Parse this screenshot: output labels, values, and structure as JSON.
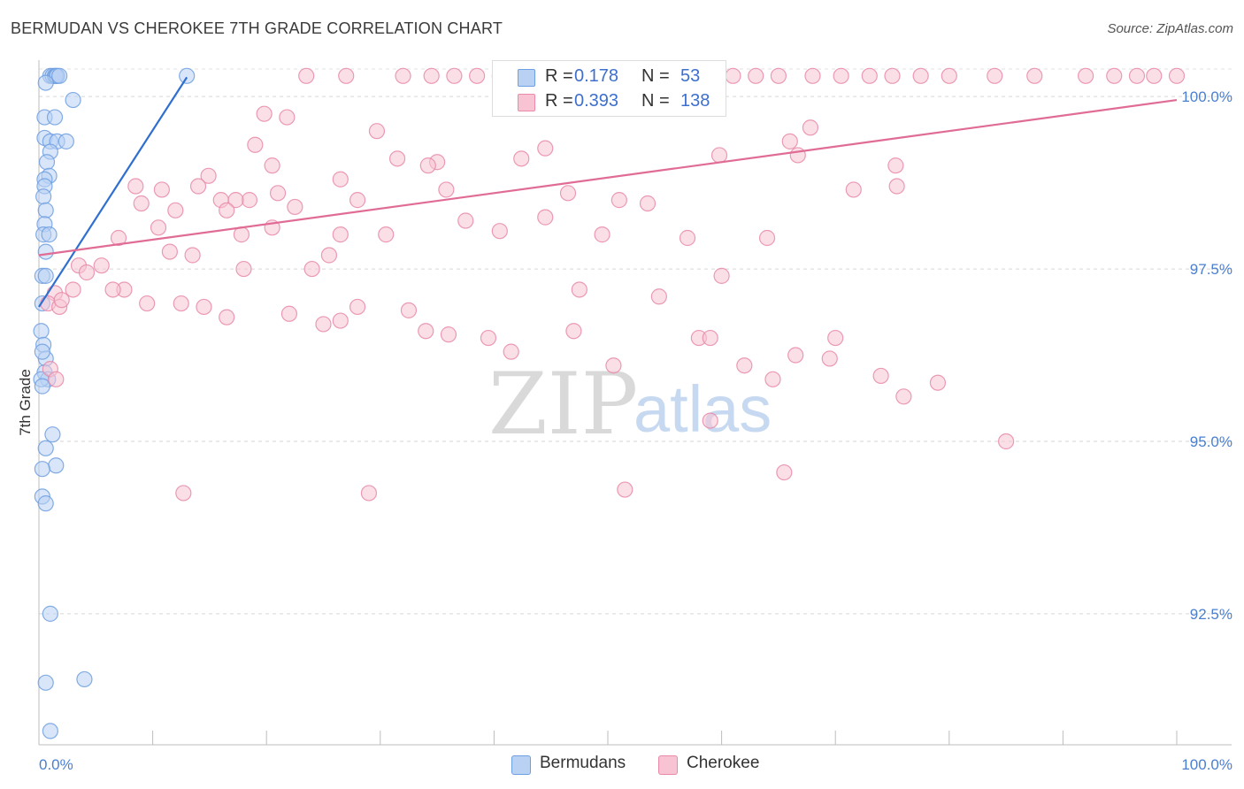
{
  "header": {
    "title": "BERMUDAN VS CHEROKEE 7TH GRADE CORRELATION CHART",
    "source": "Source: ZipAtlas.com"
  },
  "legend": {
    "r_label": "R =",
    "n_label": "N =",
    "rows": [
      {
        "name": "Bermudans",
        "r": "0.178",
        "n": "53",
        "fill": "#b9d2f4",
        "stroke": "#6e9fe0"
      },
      {
        "name": "Cherokee",
        "r": "0.393",
        "n": "138",
        "fill": "#f8c4d4",
        "stroke": "#e88aa8"
      }
    ]
  },
  "watermark": {
    "zip": "ZIP",
    "atlas": "atlas"
  },
  "chart_data": {
    "type": "scatter",
    "title": "BERMUDAN VS CHEROKEE 7TH GRADE CORRELATION CHART",
    "xlabel": "",
    "ylabel": "7th Grade",
    "xlim": [
      0,
      100
    ],
    "ylim": [
      90.6,
      100.4
    ],
    "x_tick_labels": [
      "0.0%",
      "100.0%"
    ],
    "y_ticks": [
      100.0,
      97.5,
      95.0,
      92.5
    ],
    "y_tick_labels": [
      "100.0%",
      "97.5%",
      "95.0%",
      "92.5%"
    ],
    "grid": true,
    "series": [
      {
        "name": "Bermudans",
        "color": "#6e9fe0",
        "fill": "#b9d2f4",
        "trend_color": "#2f6fd0",
        "trend": {
          "x0": 0.0,
          "y0": 96.95,
          "x1": 13.0,
          "y1": 100.28
        },
        "points": [
          [
            1.0,
            100.3
          ],
          [
            1.2,
            100.3
          ],
          [
            1.4,
            100.3
          ],
          [
            1.5,
            100.3
          ],
          [
            1.6,
            100.3
          ],
          [
            1.8,
            100.3
          ],
          [
            13.0,
            100.3
          ],
          [
            0.6,
            100.2
          ],
          [
            3.0,
            99.95
          ],
          [
            0.5,
            99.7
          ],
          [
            1.4,
            99.7
          ],
          [
            0.5,
            99.4
          ],
          [
            1.0,
            99.35
          ],
          [
            1.6,
            99.35
          ],
          [
            2.4,
            99.35
          ],
          [
            1.0,
            99.2
          ],
          [
            0.7,
            99.05
          ],
          [
            0.9,
            98.85
          ],
          [
            0.5,
            98.8
          ],
          [
            0.5,
            98.7
          ],
          [
            0.4,
            98.55
          ],
          [
            0.6,
            98.35
          ],
          [
            0.5,
            98.15
          ],
          [
            0.4,
            98.0
          ],
          [
            0.9,
            98.0
          ],
          [
            0.6,
            97.75
          ],
          [
            0.3,
            97.4
          ],
          [
            0.6,
            97.4
          ],
          [
            0.3,
            97.0
          ],
          [
            0.2,
            96.6
          ],
          [
            0.4,
            96.4
          ],
          [
            0.6,
            96.2
          ],
          [
            0.3,
            96.3
          ],
          [
            0.5,
            96.0
          ],
          [
            0.8,
            95.9
          ],
          [
            0.2,
            95.9
          ],
          [
            0.3,
            95.8
          ],
          [
            1.2,
            95.1
          ],
          [
            0.6,
            94.9
          ],
          [
            1.5,
            94.65
          ],
          [
            0.3,
            94.6
          ],
          [
            0.3,
            94.2
          ],
          [
            0.6,
            94.1
          ],
          [
            1.0,
            92.5
          ],
          [
            0.6,
            91.5
          ],
          [
            4.0,
            91.55
          ],
          [
            1.0,
            90.8
          ]
        ]
      },
      {
        "name": "Cherokee",
        "color": "#e88aa8",
        "fill": "#f8c4d4",
        "trend_color": "#e06c95",
        "trend": {
          "x0": 0.0,
          "y0": 97.7,
          "x1": 100.0,
          "y1": 99.95
        },
        "points": [
          [
            23.5,
            100.3
          ],
          [
            27.0,
            100.3
          ],
          [
            32.0,
            100.3
          ],
          [
            34.5,
            100.3
          ],
          [
            36.5,
            100.3
          ],
          [
            38.5,
            100.3
          ],
          [
            40.5,
            100.3
          ],
          [
            41.5,
            100.3
          ],
          [
            43.5,
            100.3
          ],
          [
            45.5,
            100.3
          ],
          [
            47.0,
            100.3
          ],
          [
            48.5,
            100.3
          ],
          [
            50.5,
            100.3
          ],
          [
            52.0,
            100.3
          ],
          [
            54.5,
            100.3
          ],
          [
            56.0,
            100.3
          ],
          [
            57.5,
            100.3
          ],
          [
            59.5,
            100.3
          ],
          [
            61.0,
            100.3
          ],
          [
            63.0,
            100.3
          ],
          [
            65.0,
            100.3
          ],
          [
            68.0,
            100.3
          ],
          [
            70.5,
            100.3
          ],
          [
            73.0,
            100.3
          ],
          [
            75.0,
            100.3
          ],
          [
            77.5,
            100.3
          ],
          [
            80.0,
            100.3
          ],
          [
            84.0,
            100.3
          ],
          [
            87.5,
            100.3
          ],
          [
            92.0,
            100.3
          ],
          [
            94.5,
            100.3
          ],
          [
            96.5,
            100.3
          ],
          [
            98.0,
            100.3
          ],
          [
            100.0,
            100.3
          ],
          [
            19.8,
            99.75
          ],
          [
            21.8,
            99.7
          ],
          [
            29.7,
            99.5
          ],
          [
            67.8,
            99.55
          ],
          [
            19.0,
            99.3
          ],
          [
            44.5,
            99.25
          ],
          [
            59.8,
            99.15
          ],
          [
            66.0,
            99.35
          ],
          [
            66.7,
            99.15
          ],
          [
            42.4,
            99.1
          ],
          [
            31.5,
            99.1
          ],
          [
            35.0,
            99.05
          ],
          [
            34.2,
            99.0
          ],
          [
            20.5,
            99.0
          ],
          [
            75.3,
            99.0
          ],
          [
            14.9,
            98.85
          ],
          [
            26.5,
            98.8
          ],
          [
            14.0,
            98.7
          ],
          [
            8.5,
            98.7
          ],
          [
            10.8,
            98.65
          ],
          [
            21.0,
            98.6
          ],
          [
            35.8,
            98.65
          ],
          [
            46.5,
            98.6
          ],
          [
            51.0,
            98.5
          ],
          [
            53.5,
            98.45
          ],
          [
            71.6,
            98.65
          ],
          [
            75.4,
            98.7
          ],
          [
            16.0,
            98.5
          ],
          [
            18.5,
            98.5
          ],
          [
            17.3,
            98.5
          ],
          [
            16.5,
            98.35
          ],
          [
            22.5,
            98.4
          ],
          [
            28.0,
            98.5
          ],
          [
            9.0,
            98.45
          ],
          [
            12.0,
            98.35
          ],
          [
            10.5,
            98.1
          ],
          [
            17.8,
            98.0
          ],
          [
            20.5,
            98.1
          ],
          [
            26.5,
            98.0
          ],
          [
            30.5,
            98.0
          ],
          [
            37.5,
            98.2
          ],
          [
            40.5,
            98.05
          ],
          [
            44.5,
            98.25
          ],
          [
            49.5,
            98.0
          ],
          [
            57.0,
            97.95
          ],
          [
            64.0,
            97.95
          ],
          [
            7.0,
            97.95
          ],
          [
            11.5,
            97.75
          ],
          [
            13.5,
            97.7
          ],
          [
            25.5,
            97.7
          ],
          [
            24.0,
            97.5
          ],
          [
            18.0,
            97.5
          ],
          [
            3.5,
            97.55
          ],
          [
            5.5,
            97.55
          ],
          [
            4.2,
            97.45
          ],
          [
            7.5,
            97.2
          ],
          [
            9.5,
            97.0
          ],
          [
            6.5,
            97.2
          ],
          [
            12.5,
            97.0
          ],
          [
            14.5,
            96.95
          ],
          [
            16.5,
            96.8
          ],
          [
            22.0,
            96.85
          ],
          [
            25.0,
            96.7
          ],
          [
            3.0,
            97.2
          ],
          [
            1.4,
            97.15
          ],
          [
            0.8,
            97.0
          ],
          [
            1.8,
            96.95
          ],
          [
            26.5,
            96.75
          ],
          [
            28.0,
            96.95
          ],
          [
            32.5,
            96.9
          ],
          [
            34.0,
            96.6
          ],
          [
            36.0,
            96.55
          ],
          [
            39.5,
            96.5
          ],
          [
            41.5,
            96.3
          ],
          [
            47.0,
            96.6
          ],
          [
            50.5,
            96.1
          ],
          [
            58.0,
            96.5
          ],
          [
            59.0,
            96.5
          ],
          [
            47.5,
            97.2
          ],
          [
            54.5,
            97.1
          ],
          [
            60.0,
            97.4
          ],
          [
            62.0,
            96.1
          ],
          [
            64.5,
            95.9
          ],
          [
            66.5,
            96.25
          ],
          [
            69.5,
            96.2
          ],
          [
            70.0,
            96.5
          ],
          [
            74.0,
            95.95
          ],
          [
            76.0,
            95.65
          ],
          [
            79.0,
            95.85
          ],
          [
            85.0,
            95.0
          ],
          [
            1.0,
            96.05
          ],
          [
            59.0,
            95.3
          ],
          [
            65.5,
            94.55
          ],
          [
            51.5,
            94.3
          ],
          [
            12.7,
            94.25
          ],
          [
            29.0,
            94.25
          ],
          [
            1.5,
            95.9
          ],
          [
            2.0,
            97.05
          ]
        ]
      }
    ]
  }
}
